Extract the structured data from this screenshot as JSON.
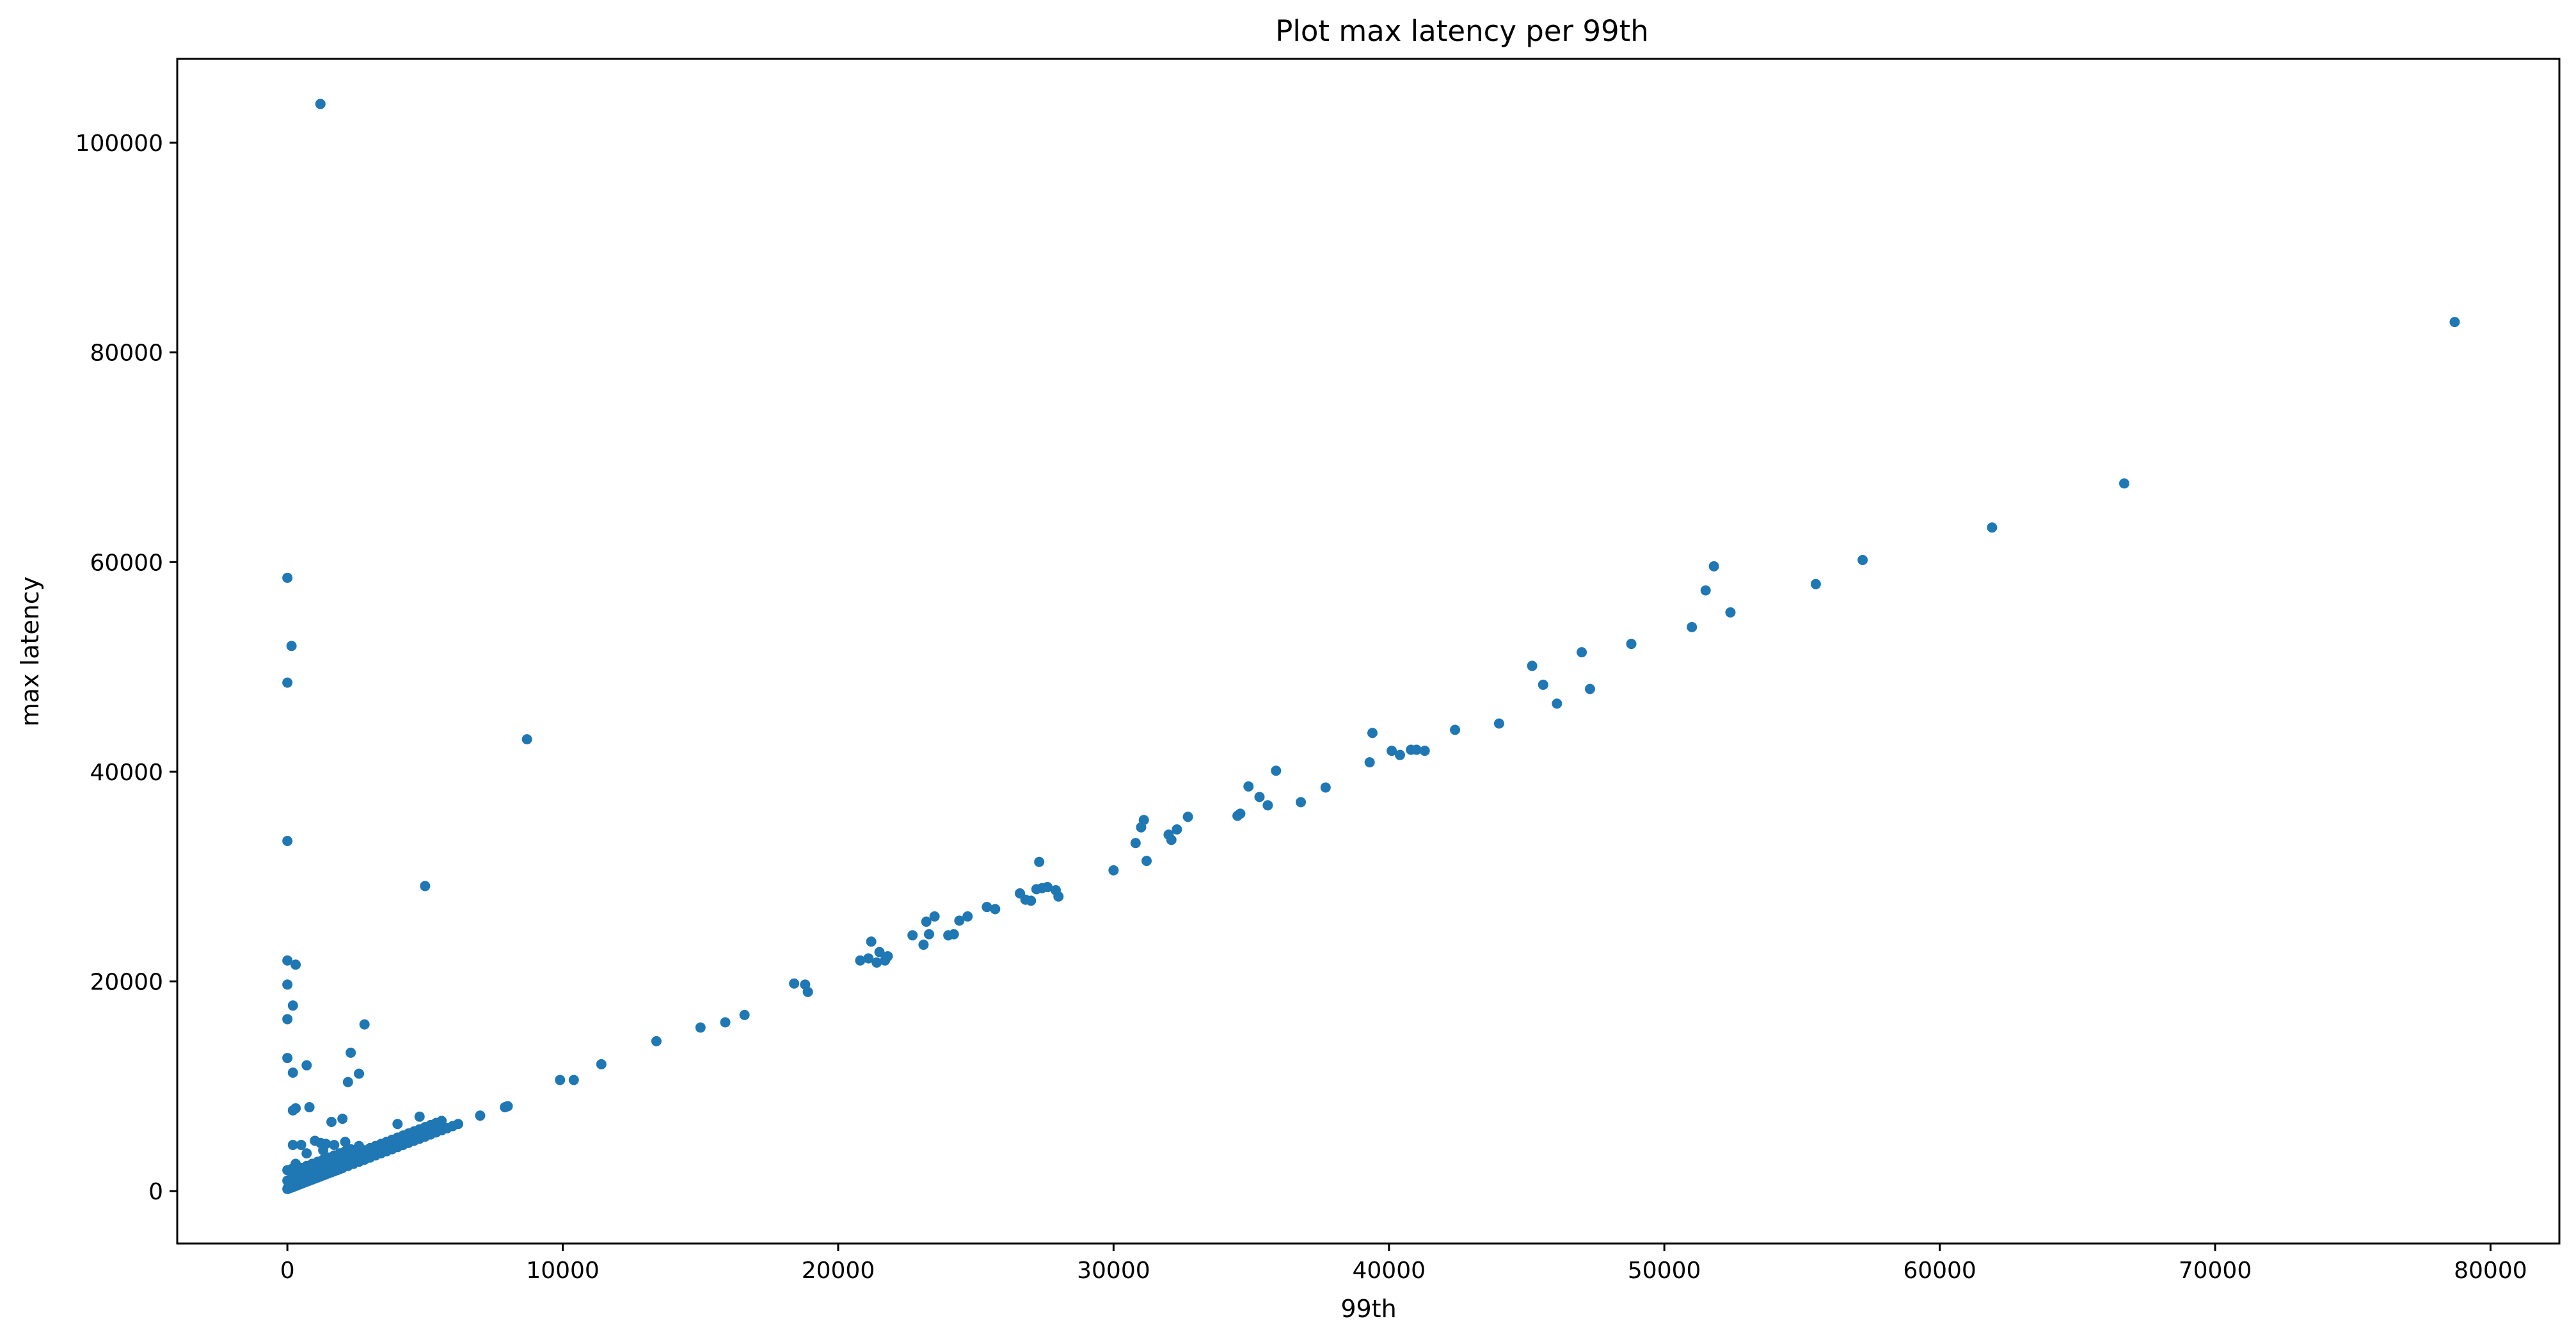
{
  "chart_data": {
    "type": "scatter",
    "title": "Plot max latency per 99th",
    "xlabel": "99th",
    "ylabel": "max latency",
    "xlim": [
      -4000,
      82500
    ],
    "ylim": [
      -5000,
      108000
    ],
    "xticks": [
      0,
      10000,
      20000,
      30000,
      40000,
      50000,
      60000,
      70000,
      80000
    ],
    "xtick_labels": [
      "0",
      "10000",
      "20000",
      "30000",
      "40000",
      "50000",
      "60000",
      "70000",
      "80000"
    ],
    "yticks": [
      0,
      20000,
      40000,
      60000,
      80000,
      100000
    ],
    "ytick_labels": [
      "0",
      "20000",
      "40000",
      "60000",
      "80000",
      "100000"
    ],
    "grid": false,
    "marker_color": "#1f77b4",
    "x": [
      0,
      50,
      100,
      150,
      200,
      250,
      300,
      350,
      400,
      450,
      500,
      600,
      700,
      800,
      900,
      1000,
      1100,
      1200,
      1300,
      1400,
      1500,
      1600,
      1700,
      1800,
      1900,
      2000,
      2200,
      2400,
      2600,
      2800,
      3000,
      3200,
      3400,
      3600,
      3800,
      4000,
      4200,
      4400,
      4600,
      4800,
      5000,
      5200,
      5400,
      5600,
      5800,
      6000,
      6200,
      0,
      100,
      200,
      300,
      400,
      500,
      600,
      800,
      1000,
      1200,
      1400,
      1600,
      1800,
      2000,
      2200,
      2400,
      2600,
      2800,
      3000,
      3200,
      3400,
      3600,
      3800,
      4000,
      4200,
      4400,
      4600,
      4800,
      5000,
      5200,
      5400,
      5600,
      0,
      150,
      300,
      500,
      700,
      900,
      1100,
      1300,
      1500,
      1700,
      1900,
      2100,
      2300,
      2600,
      20,
      40,
      60,
      80,
      100,
      150,
      200,
      300,
      400,
      500,
      600,
      700,
      800,
      0,
      0,
      0,
      0,
      0,
      0,
      150,
      300,
      0,
      200,
      300,
      200,
      200,
      700,
      800,
      1000,
      1200,
      1400,
      1600,
      2000,
      2200,
      2300,
      2600,
      2800,
      500,
      700,
      1300,
      1700,
      2100,
      4000,
      4800,
      1200,
      8700,
      5000,
      200,
      300,
      7000,
      7900,
      8000,
      9900,
      10400,
      11400,
      13400,
      15000,
      15900,
      16600,
      18400,
      18800,
      18900,
      20800,
      21100,
      21200,
      21400,
      21500,
      21700,
      21800,
      22700,
      23100,
      23200,
      23300,
      23500,
      24000,
      24200,
      24400,
      24700,
      25400,
      25700,
      26600,
      26800,
      27000,
      27200,
      27300,
      27400,
      27600,
      27900,
      28000,
      30000,
      30800,
      31000,
      31100,
      31200,
      32000,
      32100,
      32300,
      32700,
      34500,
      34600,
      34900,
      35300,
      35600,
      35900,
      36800,
      37700,
      39300,
      39400,
      40100,
      40400,
      40800,
      41000,
      41300,
      42400,
      44000,
      45200,
      45600,
      46100,
      47000,
      47300,
      48800,
      51000,
      51500,
      51800,
      52400,
      55500,
      57200,
      61900,
      66700,
      78700
    ],
    "y": [
      200,
      250,
      300,
      350,
      400,
      450,
      500,
      550,
      600,
      650,
      700,
      800,
      900,
      1000,
      1100,
      1200,
      1300,
      1400,
      1500,
      1600,
      1700,
      1800,
      1900,
      2000,
      2100,
      2200,
      2400,
      2600,
      2800,
      3000,
      3200,
      3400,
      3600,
      3800,
      4000,
      4200,
      4400,
      4600,
      4800,
      5000,
      5200,
      5400,
      5600,
      5800,
      6000,
      6200,
      6400,
      1000,
      1100,
      1300,
      1400,
      1500,
      1600,
      1700,
      1900,
      2100,
      2300,
      2500,
      2700,
      2900,
      3100,
      3300,
      3500,
      3700,
      3900,
      4100,
      4300,
      4500,
      4700,
      4900,
      5100,
      5300,
      5500,
      5700,
      5900,
      6100,
      6300,
      6500,
      6700,
      2000,
      2100,
      2000,
      2200,
      2400,
      2600,
      2800,
      3000,
      3200,
      3400,
      3600,
      3800,
      4000,
      4300,
      300,
      400,
      500,
      600,
      700,
      800,
      900,
      1000,
      1100,
      1200,
      1300,
      1400,
      1500,
      58500,
      48500,
      33400,
      22000,
      19700,
      16400,
      52000,
      21600,
      12700,
      11300,
      7900,
      7700,
      17700,
      12000,
      8000,
      4800,
      4600,
      4500,
      6600,
      6900,
      10400,
      13200,
      11200,
      15900,
      4400,
      3600,
      3900,
      4400,
      4700,
      6400,
      7100,
      103700,
      43100,
      29100,
      4400,
      2600,
      7200,
      8000,
      8100,
      10600,
      10600,
      12100,
      14300,
      15600,
      16100,
      16800,
      19800,
      19700,
      19000,
      22000,
      22200,
      23800,
      21800,
      22800,
      22000,
      22400,
      24400,
      23500,
      25700,
      24500,
      26200,
      24400,
      24500,
      25800,
      26200,
      27100,
      26900,
      28400,
      27800,
      27700,
      28800,
      31400,
      28900,
      29000,
      28700,
      28100,
      30600,
      33200,
      34700,
      35400,
      31500,
      34000,
      33500,
      34500,
      35700,
      35800,
      36000,
      38600,
      37600,
      36800,
      40100,
      37100,
      38500,
      40900,
      43700,
      42000,
      41600,
      42100,
      42100,
      42000,
      44000,
      44600,
      50100,
      48300,
      46500,
      51400,
      47900,
      52200,
      53800,
      57300,
      59600,
      55200,
      57900,
      60200,
      63300,
      67500,
      82900
    ]
  }
}
